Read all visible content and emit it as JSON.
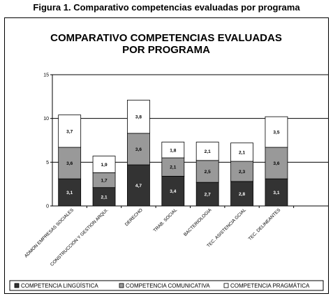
{
  "figure_caption": "Figura 1. Comparativo competencias evaluadas por programa",
  "chart_data": {
    "type": "bar",
    "stacked": true,
    "title_lines": [
      "COMPARATIVO COMPETENCIAS EVALUADAS",
      "POR PROGRAMA"
    ],
    "categories": [
      "ADMON EMPRESAS SOCIALES",
      "CONSTRUCCION Y GESTION ARQUI.",
      "DERECHO",
      "TRAB. SOCIAL",
      "BACTERIOLOGIA",
      "TEC. ASISTENCIA GCIAL",
      "TEC. DELINEANTES"
    ],
    "series": [
      {
        "name": "COMPETENCIA LINGÜÍSTICA",
        "values": [
          3.1,
          2.1,
          4.7,
          3.4,
          2.7,
          2.8,
          3.1
        ],
        "labels": [
          "3,1",
          "2,1",
          "4,7",
          "3,4",
          "2,7",
          "2,8",
          "3,1"
        ],
        "color": "#333333",
        "label_color": "#ffffff"
      },
      {
        "name": "COMPETENCIA COMUNICATIVA",
        "values": [
          3.6,
          1.7,
          3.6,
          2.1,
          2.5,
          2.3,
          3.6
        ],
        "labels": [
          "3,6",
          "1,7",
          "3,6",
          "2,1",
          "2,5",
          "2,3",
          "3,6"
        ],
        "color": "#999999",
        "label_color": "#000000"
      },
      {
        "name": "COMPETENCIA PRAGMÁTICA",
        "values": [
          3.7,
          1.9,
          3.8,
          1.8,
          2.1,
          2.1,
          3.5
        ],
        "labels": [
          "3,7",
          "1,9",
          "3,8",
          "1,8",
          "2,1",
          "2,1",
          "3,5"
        ],
        "color": "#ffffff",
        "label_color": "#000000"
      }
    ],
    "ylim": [
      0,
      15
    ],
    "yticks": [
      0,
      5,
      10,
      15
    ],
    "grid": true,
    "legend_position": "bottom"
  }
}
